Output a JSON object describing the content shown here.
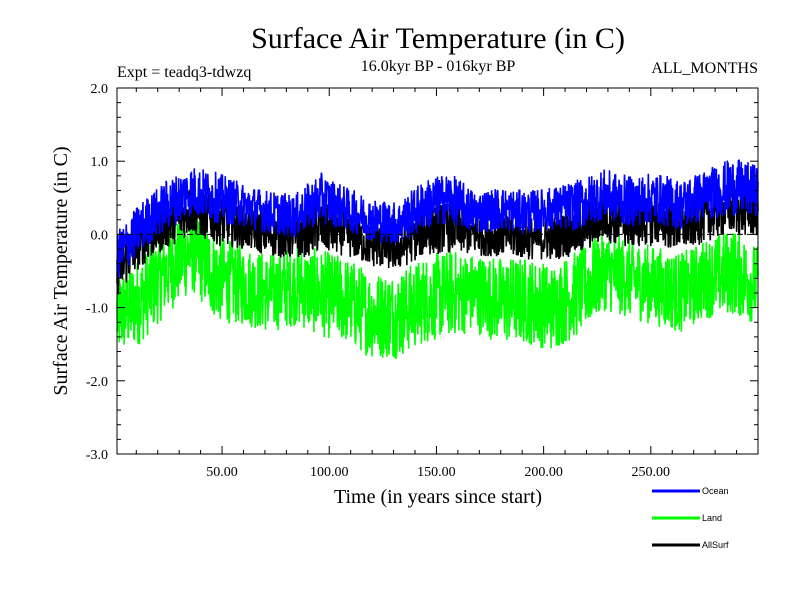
{
  "chart_data": {
    "type": "line",
    "title": "Surface Air Temperature (in C)",
    "subtitle_left": "Expt = teadq3-tdwzq",
    "subtitle_center": "16.0kyr BP - 016kyr BP",
    "subtitle_right": "ALL_MONTHS",
    "xlabel": "Time (in years since start)",
    "ylabel": "Surface Air Temperature (in C)",
    "xlim": [
      1,
      300
    ],
    "ylim": [
      -3.0,
      2.0
    ],
    "x_ticks": [
      50,
      100,
      150,
      200,
      250
    ],
    "x_tick_labels": [
      "50.00",
      "100.00",
      "150.00",
      "200.00",
      "250.00"
    ],
    "y_ticks": [
      -3.0,
      -2.0,
      -1.0,
      0.0,
      1.0,
      2.0
    ],
    "y_tick_labels": [
      "-3.0",
      "-2.0",
      "-1.0",
      "0.0",
      "1.0",
      "2.0"
    ],
    "reference_line": 0.0,
    "legend_position": "bottom-right",
    "series": [
      {
        "name": "Ocean",
        "color": "#0000ff",
        "x": [
          1,
          12,
          24,
          36,
          48,
          60,
          72,
          84,
          96,
          108,
          120,
          132,
          144,
          156,
          168,
          180,
          192,
          204,
          216,
          228,
          240,
          252,
          264,
          276,
          288,
          300
        ],
        "values": [
          -0.3,
          0.1,
          0.4,
          0.6,
          0.5,
          0.4,
          0.3,
          0.25,
          0.5,
          0.35,
          0.2,
          0.15,
          0.4,
          0.5,
          0.3,
          0.35,
          0.3,
          0.35,
          0.4,
          0.55,
          0.45,
          0.5,
          0.4,
          0.55,
          0.65,
          0.6
        ],
        "spread": [
          0.35,
          0.35,
          0.35,
          0.35,
          0.35,
          0.3,
          0.3,
          0.3,
          0.35,
          0.3,
          0.3,
          0.3,
          0.35,
          0.35,
          0.3,
          0.3,
          0.3,
          0.3,
          0.35,
          0.35,
          0.35,
          0.35,
          0.35,
          0.35,
          0.4,
          0.35
        ]
      },
      {
        "name": "Land",
        "color": "#00ff00",
        "x": [
          1,
          12,
          24,
          36,
          48,
          60,
          72,
          84,
          96,
          108,
          120,
          132,
          144,
          156,
          168,
          180,
          192,
          204,
          216,
          228,
          240,
          252,
          264,
          276,
          288,
          300
        ],
        "values": [
          -1.1,
          -0.9,
          -0.5,
          -0.2,
          -0.6,
          -0.7,
          -0.8,
          -0.7,
          -0.8,
          -0.9,
          -1.1,
          -1.1,
          -0.9,
          -0.8,
          -0.8,
          -0.9,
          -0.9,
          -1.0,
          -0.8,
          -0.5,
          -0.6,
          -0.7,
          -0.8,
          -0.6,
          -0.5,
          -0.7
        ],
        "spread": [
          0.6,
          0.6,
          0.6,
          0.6,
          0.6,
          0.55,
          0.55,
          0.55,
          0.6,
          0.6,
          0.6,
          0.6,
          0.6,
          0.6,
          0.55,
          0.6,
          0.6,
          0.6,
          0.6,
          0.55,
          0.55,
          0.55,
          0.55,
          0.55,
          0.6,
          0.55
        ]
      },
      {
        "name": "AllSurf",
        "color": "#000000",
        "x": [
          1,
          12,
          24,
          36,
          48,
          60,
          72,
          84,
          96,
          108,
          120,
          132,
          144,
          156,
          168,
          180,
          192,
          204,
          216,
          228,
          240,
          252,
          264,
          276,
          288,
          300
        ],
        "values": [
          -0.5,
          -0.1,
          0.15,
          0.35,
          0.2,
          0.1,
          0.0,
          -0.05,
          0.1,
          0.0,
          -0.15,
          -0.2,
          0.05,
          0.1,
          0.0,
          0.0,
          -0.05,
          -0.05,
          0.05,
          0.25,
          0.15,
          0.2,
          0.1,
          0.25,
          0.35,
          0.3
        ],
        "spread": [
          0.35,
          0.35,
          0.35,
          0.35,
          0.35,
          0.3,
          0.3,
          0.3,
          0.35,
          0.3,
          0.3,
          0.3,
          0.35,
          0.35,
          0.3,
          0.3,
          0.3,
          0.3,
          0.35,
          0.35,
          0.35,
          0.35,
          0.35,
          0.35,
          0.35,
          0.35
        ]
      }
    ]
  }
}
